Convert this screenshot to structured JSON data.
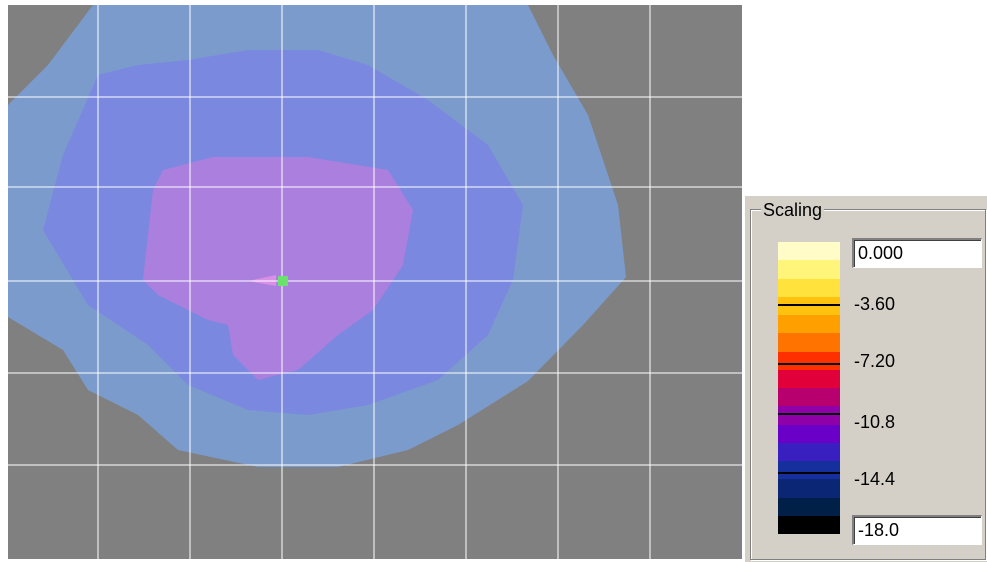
{
  "plot": {
    "background": "#808080",
    "grid_color": "#ffffff",
    "contour_colors": [
      "#7b93c4",
      "#7b9bcc",
      "#7b88df",
      "#aa7fde"
    ],
    "marker_color": "#6be26b"
  },
  "scaling": {
    "title": "Scaling",
    "max_value": "0.000",
    "min_value": "-18.0",
    "tick_labels": [
      "-3.60",
      "-7.20",
      "-10.8",
      "-14.4"
    ],
    "colors": [
      "#fffcc8",
      "#fff57a",
      "#ffe23b",
      "#ffc20f",
      "#ffa000",
      "#ff7300",
      "#ff3000",
      "#e2003a",
      "#b7006e",
      "#9000a8",
      "#6a00c8",
      "#3a1fc0",
      "#15309c",
      "#0a2674",
      "#002048",
      "#000000"
    ]
  }
}
